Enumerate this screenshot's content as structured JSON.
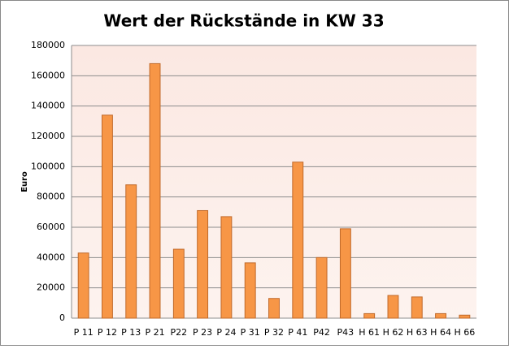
{
  "chart_data": {
    "type": "bar",
    "title": "Wert der Rückstände in KW 33",
    "y_label": "Euro",
    "categories": [
      "P 11",
      "P 12",
      "P 13",
      "P 21",
      "P22",
      "P 23",
      "P 24",
      "P 31",
      "P 32",
      "P 41",
      "P42",
      "P43",
      "H 61",
      "H 62",
      "H 63",
      "H 64",
      "H 66"
    ],
    "values": [
      43000,
      134000,
      88000,
      168000,
      45500,
      71000,
      67000,
      36500,
      13000,
      103000,
      40000,
      59000,
      3000,
      15000,
      14000,
      3000,
      2000
    ],
    "color": "#f79646",
    "ylim": [
      0,
      180000
    ],
    "yticks": [
      0,
      20000,
      40000,
      60000,
      80000,
      100000,
      120000,
      140000,
      160000,
      180000
    ],
    "grid": true
  }
}
